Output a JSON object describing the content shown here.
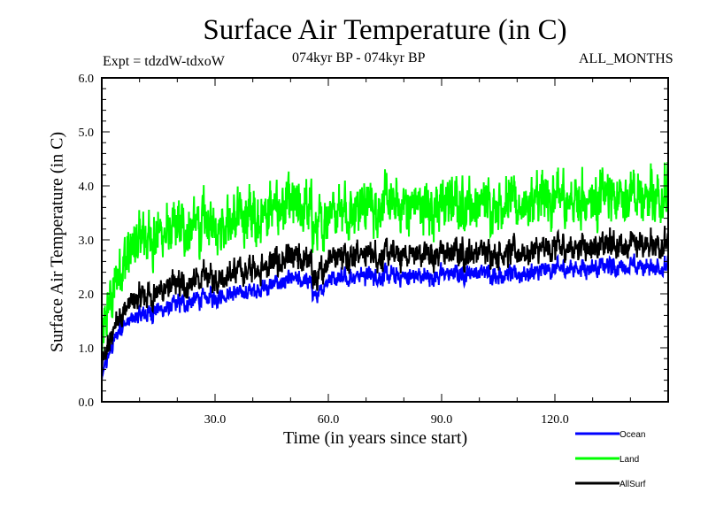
{
  "header": {
    "title": "Surface Air Temperature (in C)",
    "experiment": "Expt = tdzdW-tdxoW",
    "period": "074kyr BP - 074kyr BP",
    "months": "ALL_MONTHS"
  },
  "chart_data": {
    "type": "line",
    "title": "Surface Air Temperature (in C)",
    "xlabel": "Time (in years since start)",
    "ylabel": "Surface Air Temperature (in C)",
    "xlim": [
      0,
      150
    ],
    "ylim": [
      0.0,
      6.0
    ],
    "xticks": [
      30,
      60,
      90,
      120
    ],
    "xtick_labels": [
      "30.0",
      "60.0",
      "90.0",
      "120.0"
    ],
    "xminor_step": 10,
    "yticks": [
      0,
      1,
      2,
      3,
      4,
      5,
      6
    ],
    "ytick_labels": [
      "0.0",
      "1.0",
      "2.0",
      "3.0",
      "4.0",
      "5.0",
      "6.0"
    ],
    "yminor_step": 0.2,
    "grid": false,
    "legend_position": "bottom-right, below plot",
    "samples_per_year": 12,
    "series": [
      {
        "name": "Ocean",
        "color": "#0000ff",
        "trend_years": [
          0,
          2,
          5,
          10,
          15,
          20,
          30,
          40,
          50,
          55,
          57,
          60,
          70,
          80,
          90,
          100,
          110,
          120,
          130,
          140,
          150
        ],
        "trend_values": [
          0.4,
          0.9,
          1.4,
          1.6,
          1.7,
          1.8,
          1.95,
          2.05,
          2.25,
          2.2,
          1.9,
          2.3,
          2.35,
          2.3,
          2.35,
          2.4,
          2.35,
          2.45,
          2.5,
          2.5,
          2.5
        ],
        "noise_amplitude": 0.18
      },
      {
        "name": "Land",
        "color": "#00ff00",
        "trend_years": [
          0,
          2,
          5,
          10,
          15,
          20,
          30,
          40,
          50,
          55,
          57,
          60,
          70,
          80,
          90,
          100,
          110,
          120,
          130,
          140,
          150
        ],
        "trend_values": [
          1.0,
          1.8,
          2.5,
          3.0,
          3.1,
          3.2,
          3.3,
          3.45,
          3.6,
          3.55,
          3.1,
          3.6,
          3.65,
          3.6,
          3.65,
          3.7,
          3.65,
          3.75,
          3.8,
          3.8,
          3.85
        ],
        "noise_amplitude": 0.55
      },
      {
        "name": "AllSurf",
        "color": "#000000",
        "trend_years": [
          0,
          2,
          5,
          10,
          15,
          20,
          30,
          40,
          50,
          55,
          57,
          60,
          70,
          80,
          90,
          100,
          110,
          120,
          130,
          140,
          150
        ],
        "trend_values": [
          0.6,
          1.1,
          1.65,
          1.95,
          2.05,
          2.15,
          2.3,
          2.45,
          2.65,
          2.6,
          2.2,
          2.7,
          2.75,
          2.7,
          2.75,
          2.8,
          2.75,
          2.85,
          2.9,
          2.9,
          2.95
        ],
        "noise_amplitude": 0.28
      }
    ]
  }
}
